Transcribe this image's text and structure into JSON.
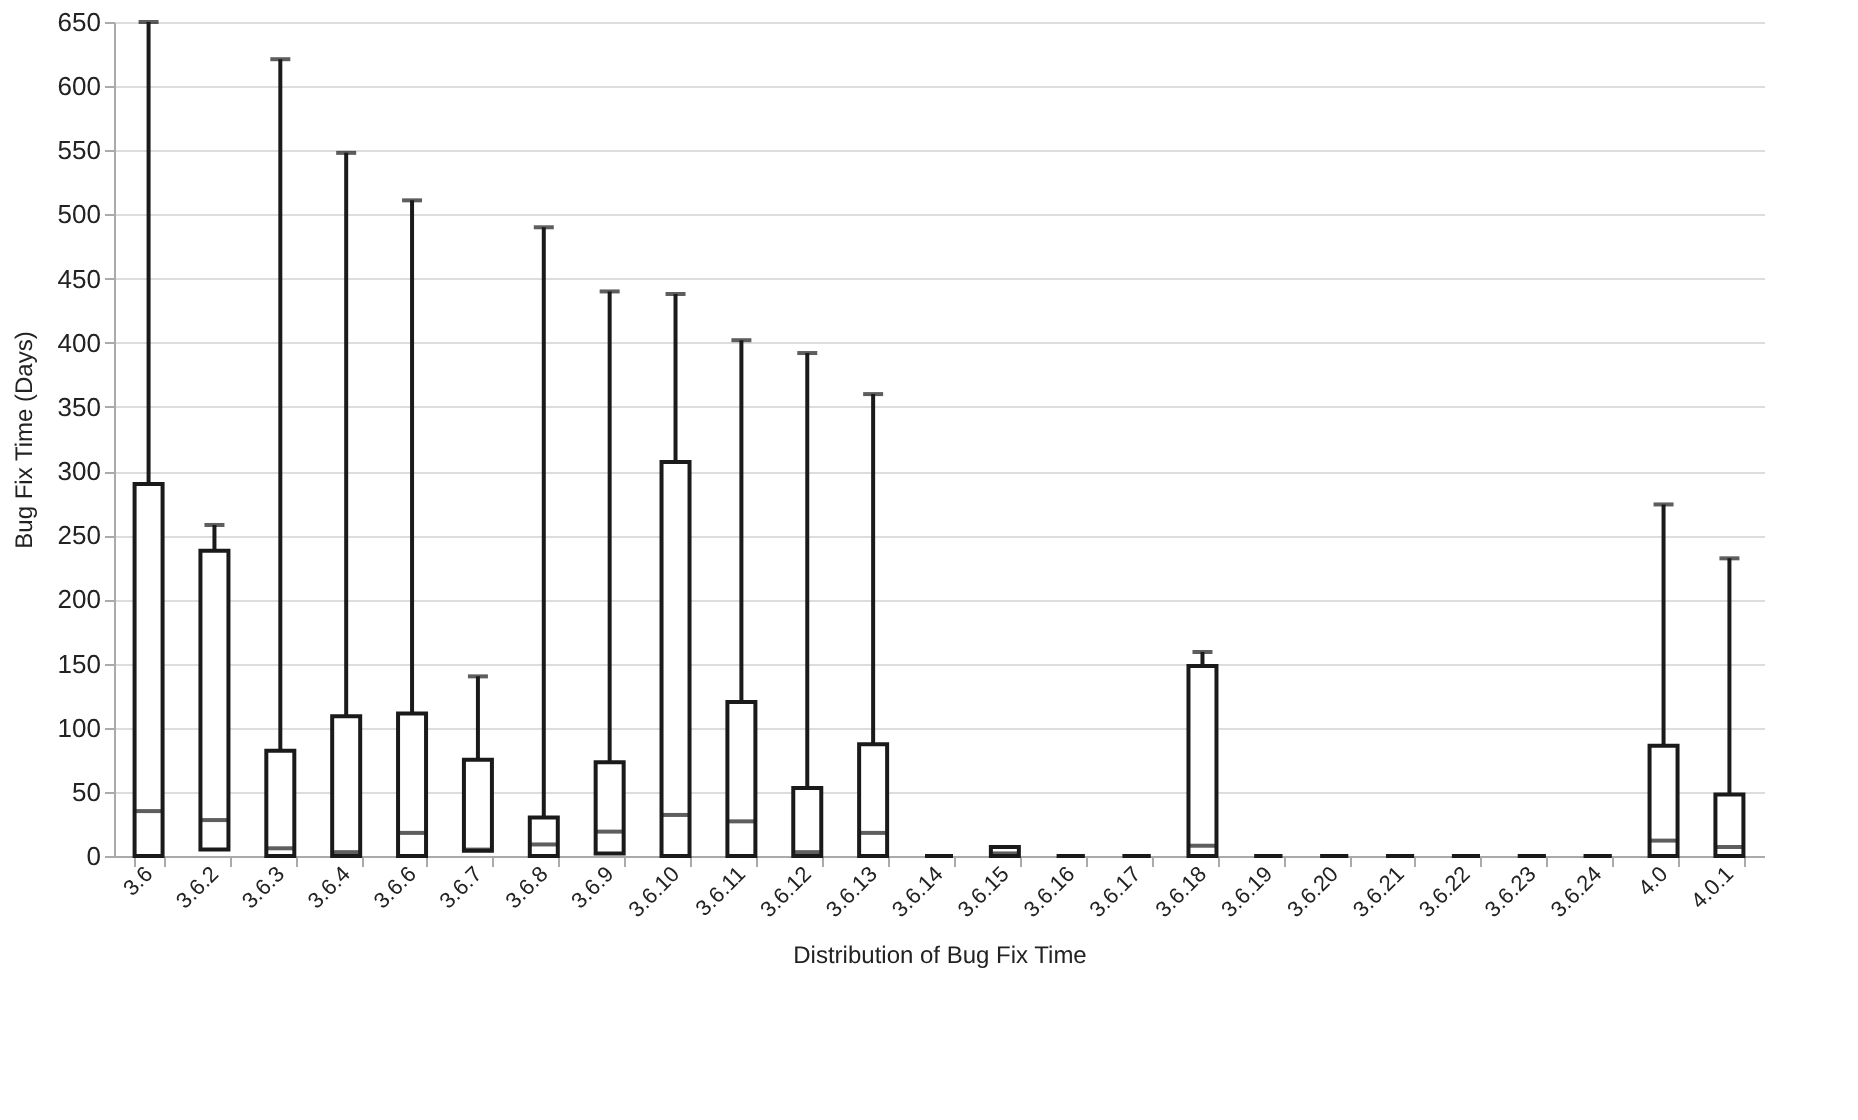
{
  "chart_data": {
    "type": "box",
    "xlabel": "Distribution of Bug Fix Time",
    "ylabel": "Bug Fix Time (Days)",
    "categories": [
      "3.6",
      "3.6.2",
      "3.6.3",
      "3.6.4",
      "3.6.6",
      "3.6.7",
      "3.6.8",
      "3.6.9",
      "3.6.10",
      "3.6.11",
      "3.6.12",
      "3.6.13",
      "3.6.14",
      "3.6.15",
      "3.6.16",
      "3.6.17",
      "3.6.18",
      "3.6.19",
      "3.6.20",
      "3.6.21",
      "3.6.22",
      "3.6.23",
      "3.6.24",
      "4.0",
      "4.0.1"
    ],
    "boxes": [
      {
        "low": 0,
        "q1": 0,
        "median": 35,
        "q3": 290,
        "high": 650
      },
      {
        "low": 5,
        "q1": 5,
        "median": 28,
        "q3": 238,
        "high": 258
      },
      {
        "low": 0,
        "q1": 0,
        "median": 6,
        "q3": 82,
        "high": 621
      },
      {
        "low": 0,
        "q1": 0,
        "median": 3,
        "q3": 109,
        "high": 548
      },
      {
        "low": 0,
        "q1": 0,
        "median": 18,
        "q3": 111,
        "high": 511
      },
      {
        "low": 4,
        "q1": 4,
        "median": 5,
        "q3": 75,
        "high": 140
      },
      {
        "low": 0,
        "q1": 0,
        "median": 9,
        "q3": 30,
        "high": 490
      },
      {
        "low": 1,
        "q1": 2,
        "median": 19,
        "q3": 73,
        "high": 440
      },
      {
        "low": 0,
        "q1": 0,
        "median": 32,
        "q3": 307,
        "high": 438
      },
      {
        "low": 0,
        "q1": 0,
        "median": 27,
        "q3": 120,
        "high": 402
      },
      {
        "low": 0,
        "q1": 0,
        "median": 3,
        "q3": 53,
        "high": 392
      },
      {
        "low": 0,
        "q1": 0,
        "median": 18,
        "q3": 87,
        "high": 360
      },
      {
        "low": 0,
        "q1": 0,
        "median": 0,
        "q3": 0,
        "high": 0
      },
      {
        "low": 0,
        "q1": 0,
        "median": 2,
        "q3": 7,
        "high": 7
      },
      {
        "low": 0,
        "q1": 0,
        "median": 0,
        "q3": 0,
        "high": 0
      },
      {
        "low": 0,
        "q1": 0,
        "median": 0,
        "q3": 0,
        "high": 0
      },
      {
        "low": 0,
        "q1": 0,
        "median": 8,
        "q3": 148,
        "high": 159
      },
      {
        "low": 0,
        "q1": 0,
        "median": 0,
        "q3": 0,
        "high": 0
      },
      {
        "low": 0,
        "q1": 0,
        "median": 0,
        "q3": 0,
        "high": 0
      },
      {
        "low": 0,
        "q1": 0,
        "median": 0,
        "q3": 0,
        "high": 0
      },
      {
        "low": 0,
        "q1": 0,
        "median": 0,
        "q3": 0,
        "high": 0
      },
      {
        "low": 0,
        "q1": 0,
        "median": 0,
        "q3": 0,
        "high": 0
      },
      {
        "low": 0,
        "q1": 0,
        "median": 0,
        "q3": 0,
        "high": 0
      },
      {
        "low": 0,
        "q1": 0,
        "median": 12,
        "q3": 86,
        "high": 274
      },
      {
        "low": 0,
        "q1": 0,
        "median": 7,
        "q3": 48,
        "high": 232
      }
    ],
    "color": "#1a1a1a",
    "ylim": [
      0,
      650
    ],
    "yticks": [
      0,
      50,
      100,
      150,
      200,
      250,
      300,
      350,
      400,
      450,
      500,
      550,
      600,
      650
    ],
    "grid": "y"
  }
}
